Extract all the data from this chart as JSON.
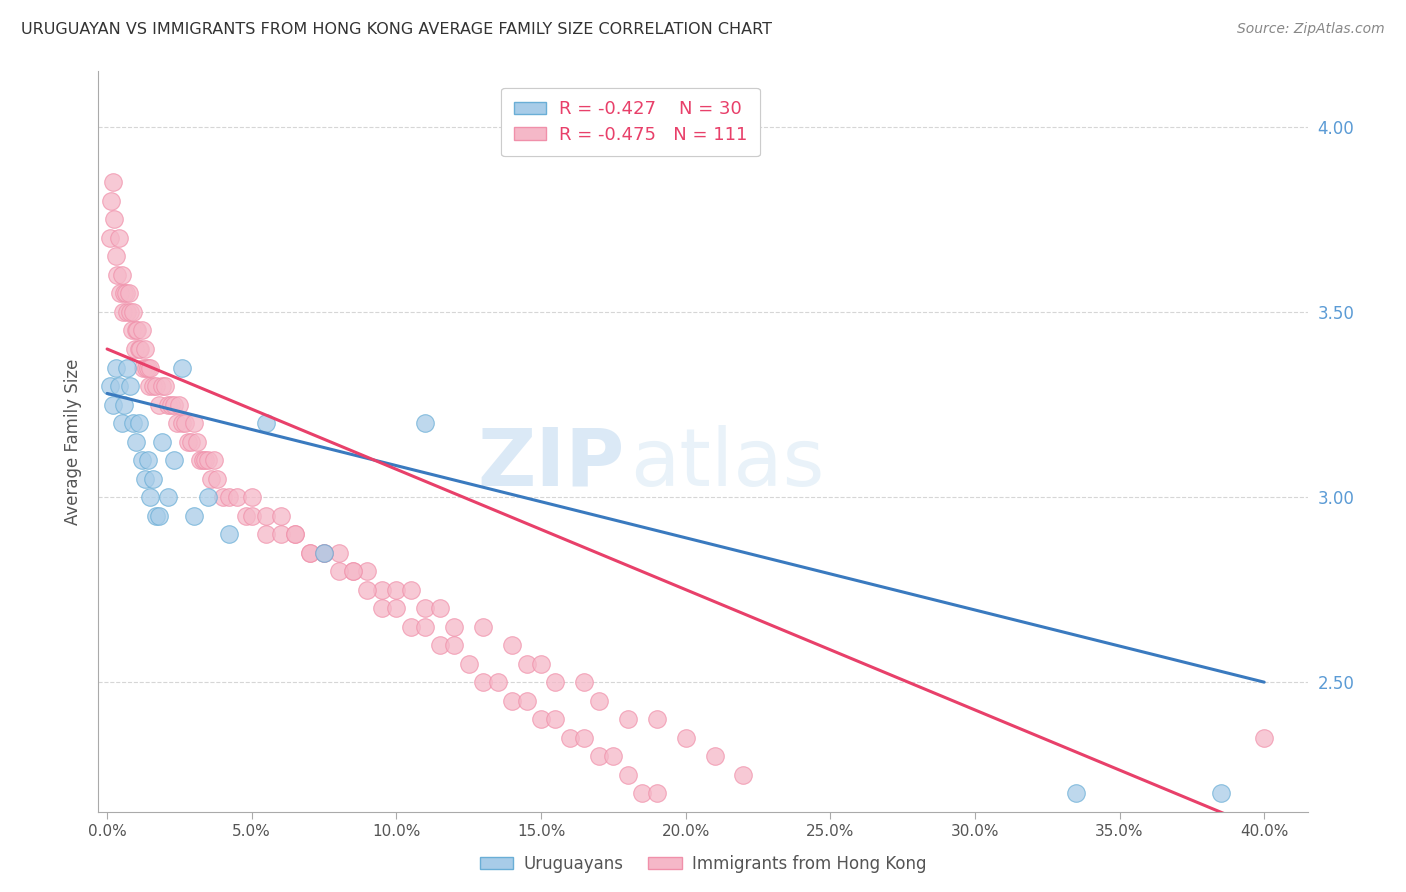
{
  "title": "URUGUAYAN VS IMMIGRANTS FROM HONG KONG AVERAGE FAMILY SIZE CORRELATION CHART",
  "source": "Source: ZipAtlas.com",
  "ylabel": "Average Family Size",
  "xlabel_ticks": [
    "0.0%",
    "5.0%",
    "10.0%",
    "15.0%",
    "20.0%",
    "25.0%",
    "30.0%",
    "35.0%",
    "40.0%"
  ],
  "xlabel_vals": [
    0.0,
    5.0,
    10.0,
    15.0,
    20.0,
    25.0,
    30.0,
    35.0,
    40.0
  ],
  "ylim_bottom": 2.15,
  "ylim_top": 4.15,
  "xlim_left": -0.3,
  "xlim_right": 41.5,
  "yticks": [
    2.5,
    3.0,
    3.5,
    4.0
  ],
  "legend1_label": "Uruguayans",
  "legend2_label": "Immigrants from Hong Kong",
  "blue_R": -0.427,
  "blue_N": 30,
  "pink_R": -0.475,
  "pink_N": 111,
  "blue_color": "#a8cce8",
  "pink_color": "#f5b8c8",
  "blue_edge_color": "#6aaed6",
  "pink_edge_color": "#f090aa",
  "blue_line_color": "#3a7abf",
  "pink_line_color": "#e8406a",
  "bg_color": "#ffffff",
  "watermark_zip": "ZIP",
  "watermark_atlas": "atlas",
  "grid_color": "#cccccc",
  "title_color": "#333333",
  "source_color": "#888888",
  "ytick_color": "#5b9bd5",
  "xtick_color": "#555555",
  "blue_line_start_y": 3.28,
  "blue_line_end_y": 2.5,
  "pink_line_start_y": 3.4,
  "pink_line_end_y": 2.1,
  "blue_scatter_x": [
    0.1,
    0.2,
    0.3,
    0.4,
    0.5,
    0.6,
    0.7,
    0.8,
    0.9,
    1.0,
    1.1,
    1.2,
    1.3,
    1.4,
    1.5,
    1.6,
    1.7,
    1.8,
    1.9,
    2.1,
    2.3,
    2.6,
    3.0,
    3.5,
    4.2,
    5.5,
    7.5,
    11.0,
    33.5,
    38.5
  ],
  "blue_scatter_y": [
    3.3,
    3.25,
    3.35,
    3.3,
    3.2,
    3.25,
    3.35,
    3.3,
    3.2,
    3.15,
    3.2,
    3.1,
    3.05,
    3.1,
    3.0,
    3.05,
    2.95,
    2.95,
    3.15,
    3.0,
    3.1,
    3.35,
    2.95,
    3.0,
    2.9,
    3.2,
    2.85,
    3.2,
    2.2,
    2.2
  ],
  "pink_scatter_x": [
    0.1,
    0.15,
    0.2,
    0.25,
    0.3,
    0.35,
    0.4,
    0.45,
    0.5,
    0.55,
    0.6,
    0.65,
    0.7,
    0.75,
    0.8,
    0.85,
    0.9,
    0.95,
    1.0,
    1.05,
    1.1,
    1.15,
    1.2,
    1.25,
    1.3,
    1.35,
    1.4,
    1.45,
    1.5,
    1.6,
    1.7,
    1.8,
    1.9,
    2.0,
    2.1,
    2.2,
    2.3,
    2.4,
    2.5,
    2.6,
    2.7,
    2.8,
    2.9,
    3.0,
    3.1,
    3.2,
    3.3,
    3.4,
    3.5,
    3.6,
    3.7,
    3.8,
    4.0,
    4.2,
    4.5,
    4.8,
    5.0,
    5.5,
    6.0,
    6.5,
    7.0,
    7.5,
    8.0,
    8.5,
    9.0,
    9.5,
    10.0,
    10.5,
    11.0,
    11.5,
    12.0,
    13.0,
    14.0,
    14.5,
    15.0,
    15.5,
    16.5,
    17.0,
    18.0,
    19.0,
    20.0,
    21.0,
    22.0,
    5.0,
    5.5,
    6.0,
    6.5,
    7.0,
    7.5,
    8.0,
    8.5,
    9.0,
    9.5,
    10.0,
    10.5,
    11.0,
    11.5,
    12.0,
    12.5,
    13.0,
    13.5,
    14.0,
    14.5,
    15.0,
    15.5,
    16.0,
    16.5,
    17.0,
    17.5,
    18.0,
    18.5,
    19.0,
    40.0
  ],
  "pink_scatter_y": [
    3.7,
    3.8,
    3.85,
    3.75,
    3.65,
    3.6,
    3.7,
    3.55,
    3.6,
    3.5,
    3.55,
    3.55,
    3.5,
    3.55,
    3.5,
    3.45,
    3.5,
    3.4,
    3.45,
    3.45,
    3.4,
    3.4,
    3.45,
    3.35,
    3.4,
    3.35,
    3.35,
    3.3,
    3.35,
    3.3,
    3.3,
    3.25,
    3.3,
    3.3,
    3.25,
    3.25,
    3.25,
    3.2,
    3.25,
    3.2,
    3.2,
    3.15,
    3.15,
    3.2,
    3.15,
    3.1,
    3.1,
    3.1,
    3.1,
    3.05,
    3.1,
    3.05,
    3.0,
    3.0,
    3.0,
    2.95,
    2.95,
    2.9,
    2.9,
    2.9,
    2.85,
    2.85,
    2.85,
    2.8,
    2.8,
    2.75,
    2.75,
    2.75,
    2.7,
    2.7,
    2.65,
    2.65,
    2.6,
    2.55,
    2.55,
    2.5,
    2.5,
    2.45,
    2.4,
    2.4,
    2.35,
    2.3,
    2.25,
    3.0,
    2.95,
    2.95,
    2.9,
    2.85,
    2.85,
    2.8,
    2.8,
    2.75,
    2.7,
    2.7,
    2.65,
    2.65,
    2.6,
    2.6,
    2.55,
    2.5,
    2.5,
    2.45,
    2.45,
    2.4,
    2.4,
    2.35,
    2.35,
    2.3,
    2.3,
    2.25,
    2.2,
    2.2,
    2.35
  ]
}
